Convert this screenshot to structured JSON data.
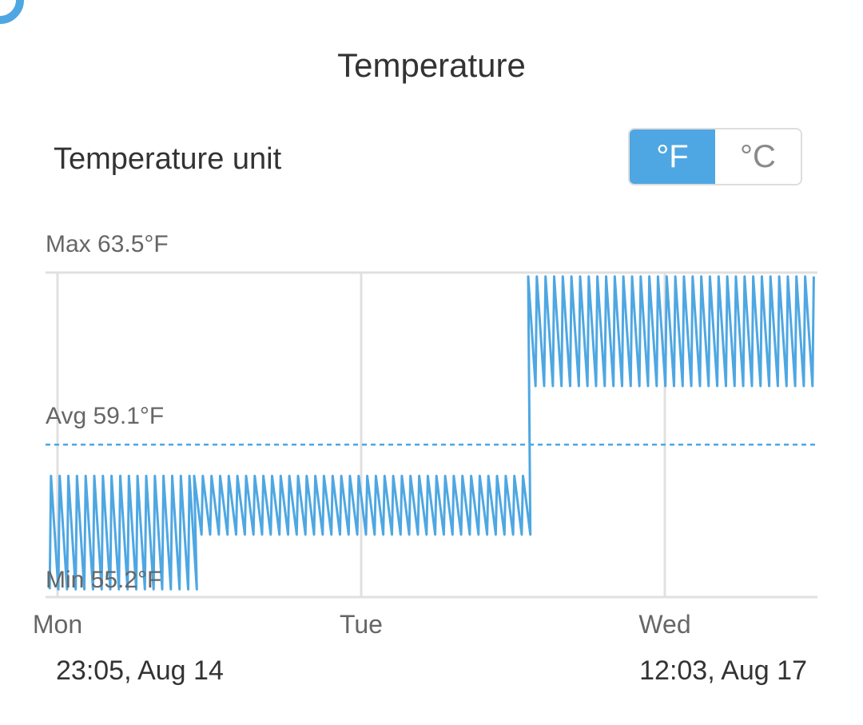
{
  "header": {
    "title": "Temperature"
  },
  "unit_selector": {
    "label": "Temperature unit",
    "options": [
      "°F",
      "°C"
    ],
    "selected": "°F"
  },
  "range": {
    "start": "23:05, Aug 14",
    "end": "12:03, Aug 17"
  },
  "colors": {
    "accent": "#4ea7e2",
    "grid": "#e0e0e0",
    "text": "#333333",
    "muted": "#666666"
  },
  "chart_data": {
    "type": "line",
    "x_ticks": [
      "Mon",
      "Tue",
      "Wed"
    ],
    "y_unit": "°F",
    "ylim": [
      55.2,
      63.5
    ],
    "stats": {
      "max": {
        "label": "Max 63.5°F",
        "value": 63.5
      },
      "avg": {
        "label": "Avg 59.1°F",
        "value": 59.1
      },
      "min": {
        "label": "Min 55.2°F",
        "value": 55.2
      }
    },
    "grid": true,
    "series": [
      {
        "segments": [
          {
            "from_day": -0.05,
            "to_day": 0.45,
            "low": 55.4,
            "high": 58.3
          },
          {
            "from_day": 0.45,
            "to_day": 1.55,
            "high": 58.3,
            "low": 56.8
          },
          {
            "from_day": 1.55,
            "to_day": 2.5,
            "high": 63.4,
            "low": 60.6
          }
        ],
        "cycle_days": 0.0285
      }
    ]
  }
}
